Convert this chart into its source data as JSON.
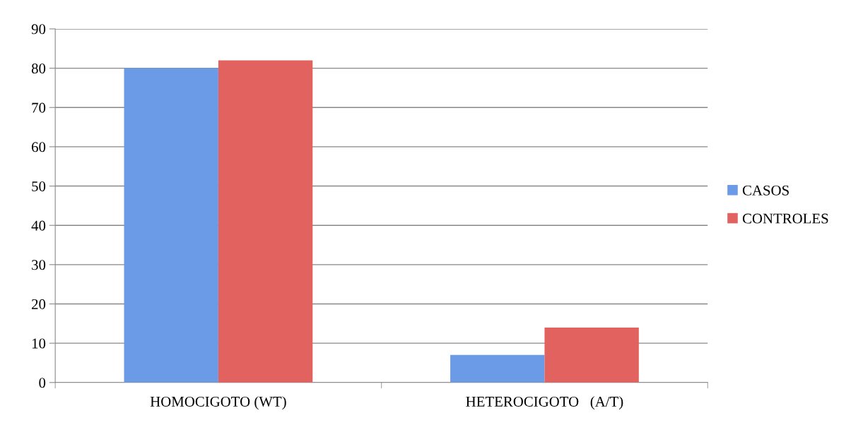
{
  "chart_data": {
    "type": "bar",
    "categories": [
      "HOMOCIGOTO (WT)",
      "HETEROCIGOTO   (A/T)"
    ],
    "series": [
      {
        "name": "CASOS",
        "color": "#6b9be6",
        "values": [
          80,
          7
        ]
      },
      {
        "name": "CONTROLES",
        "color": "#e2625f",
        "values": [
          82,
          14
        ]
      }
    ],
    "ylim": [
      0,
      90
    ],
    "yticks": [
      0,
      10,
      20,
      30,
      40,
      50,
      60,
      70,
      80,
      90
    ],
    "grid": "y",
    "legend": "right"
  }
}
